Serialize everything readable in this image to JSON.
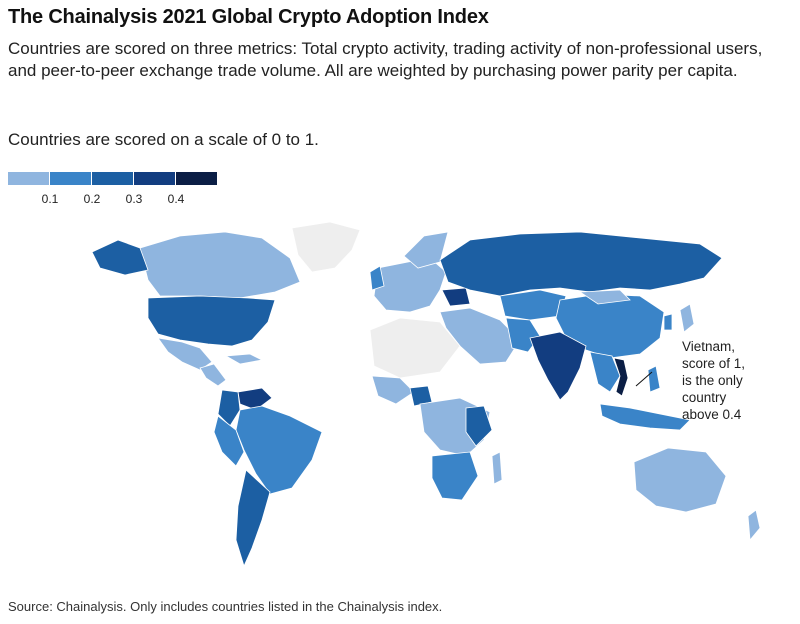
{
  "title": "The Chainalysis 2021 Global Crypto Adoption Index",
  "subtitle": "Countries are scored on three metrics: Total crypto activity, trading activity of non-professional users, and peer-to-peer exchange trade volume. All are weighted by purchasing power parity per capita.",
  "scale_note": "Countries are scored on a scale of 0 to 1.",
  "legend": {
    "ticks": [
      "0.1",
      "0.2",
      "0.3",
      "0.4"
    ],
    "colors": [
      "#8fb5df",
      "#3a84c8",
      "#1c5fa3",
      "#123d80",
      "#0b1e45"
    ]
  },
  "annotation": {
    "lines": [
      "Vietnam,",
      "score of 1,",
      "is the only",
      "country",
      "above 0.4"
    ]
  },
  "source": "Source: Chainalysis. Only includes countries listed in the Chainalysis index.",
  "colors": {
    "no_data": "#eeeeee",
    "tier1": "#8fb5df",
    "tier2": "#3a84c8",
    "tier3": "#1c5fa3",
    "tier4": "#123d80",
    "top": "#0b1e45"
  }
}
